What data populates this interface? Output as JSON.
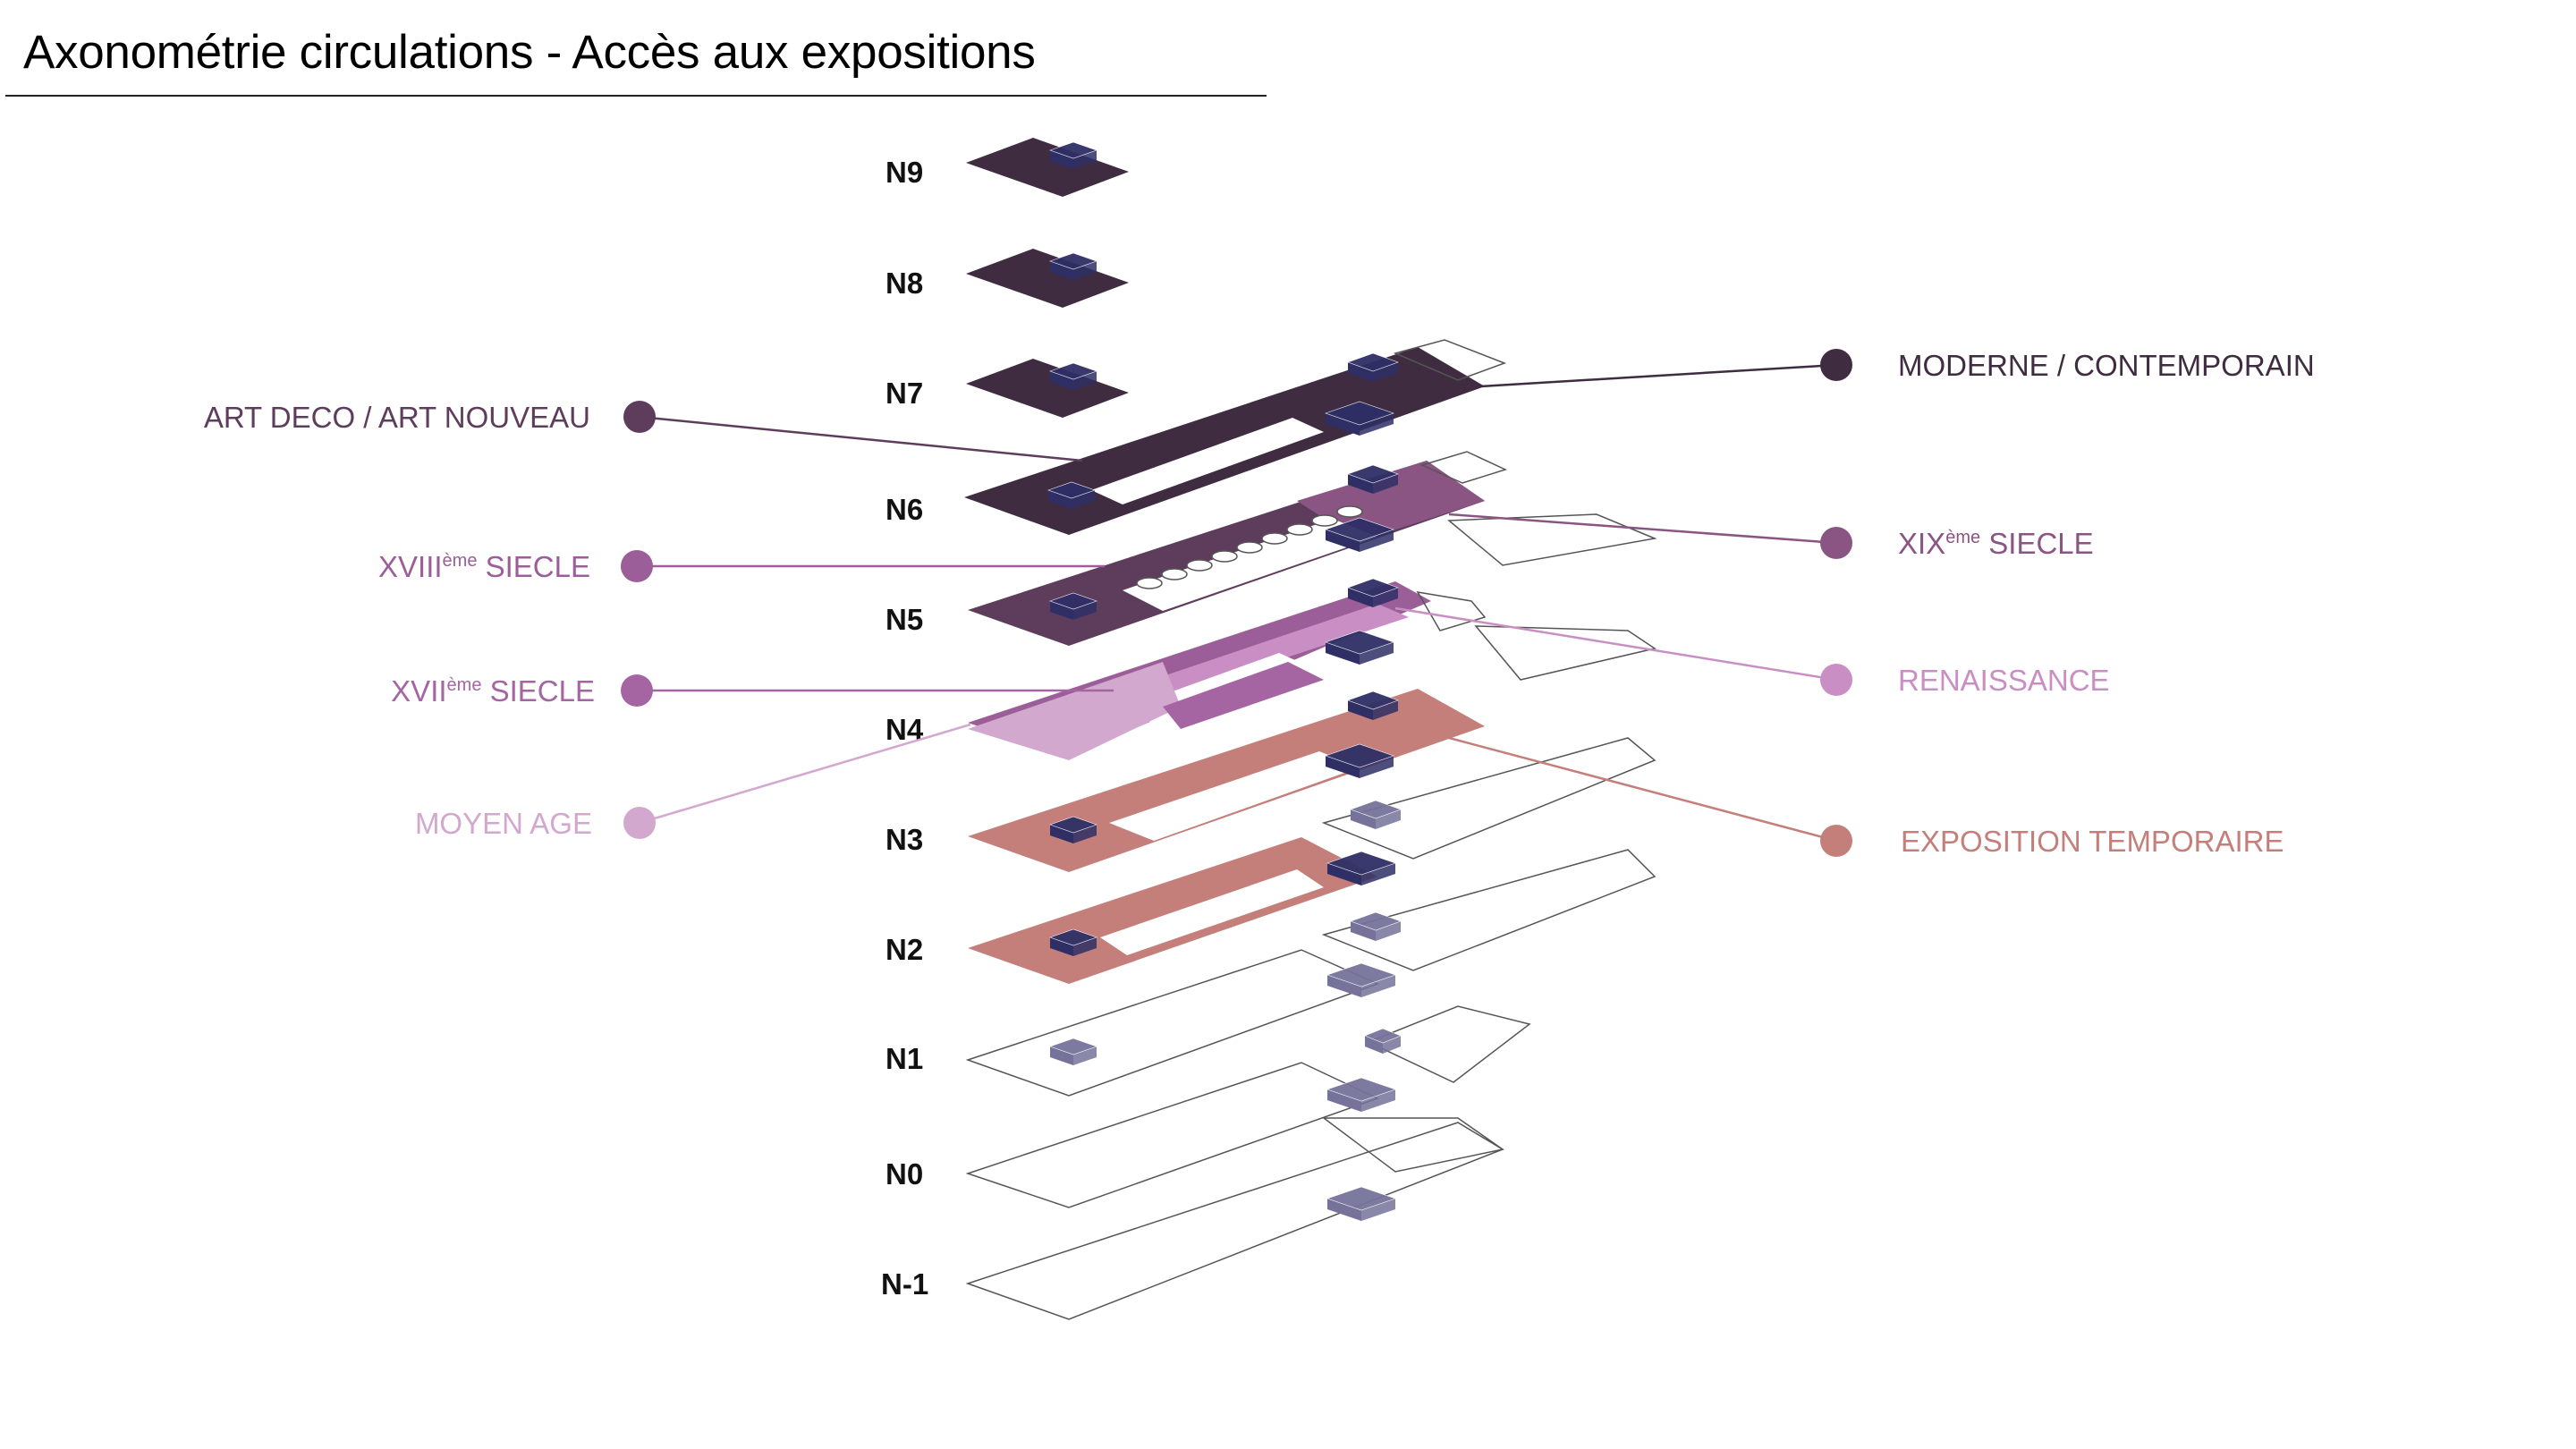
{
  "title": "Axonométrie circulations - Accès aux expositions",
  "levels": [
    {
      "label": "N9",
      "y": 0
    },
    {
      "label": "N8",
      "y": 0
    },
    {
      "label": "N7",
      "y": 0
    },
    {
      "label": "N6",
      "y": 0
    },
    {
      "label": "N5",
      "y": 0
    },
    {
      "label": "N4",
      "y": 0
    },
    {
      "label": "N3",
      "y": 0
    },
    {
      "label": "N2",
      "y": 0
    },
    {
      "label": "N1",
      "y": 0
    },
    {
      "label": "N0",
      "y": 0
    },
    {
      "label": "N-1",
      "y": 0
    }
  ],
  "legend_left": [
    {
      "id": "art-deco",
      "text": "ART DECO / ART NOUVEAU",
      "sup": "",
      "rest": "",
      "color": "#5e3d5c"
    },
    {
      "id": "xviii",
      "text": "XVIII",
      "sup": "ème",
      "rest": " SIECLE",
      "color": "#9b5e98"
    },
    {
      "id": "xvii",
      "text": "XVII",
      "sup": "ème",
      "rest": " SIECLE",
      "color": "#a565a3"
    },
    {
      "id": "moyen-age",
      "text": "MOYEN AGE",
      "sup": "",
      "rest": "",
      "color": "#d2a8cf"
    }
  ],
  "legend_right": [
    {
      "id": "moderne",
      "text": "MODERNE / CONTEMPORAIN",
      "sup": "",
      "rest": "",
      "color": "#3f2c41"
    },
    {
      "id": "xix",
      "text": "XIX",
      "sup": "ème",
      "rest": " SIECLE",
      "color": "#8a5583"
    },
    {
      "id": "renaissance",
      "text": "RENAISSANCE",
      "sup": "",
      "rest": "",
      "color": "#c98fc4"
    },
    {
      "id": "expo-temp",
      "text": "EXPOSITION TEMPORAIRE",
      "sup": "",
      "rest": "",
      "color": "#c47f7b"
    }
  ],
  "colors": {
    "moderne": "#3f2c41",
    "art_deco": "#5e3d5c",
    "xix": "#8a5583",
    "xviii": "#9b5e98",
    "xvii": "#a565a3",
    "renaissance": "#c98fc4",
    "moyen_age": "#d2a8cf",
    "expo_temp": "#c47f7b",
    "core_dark": "#2f2f66",
    "core_light": "#76739a",
    "outline": "#555555"
  }
}
